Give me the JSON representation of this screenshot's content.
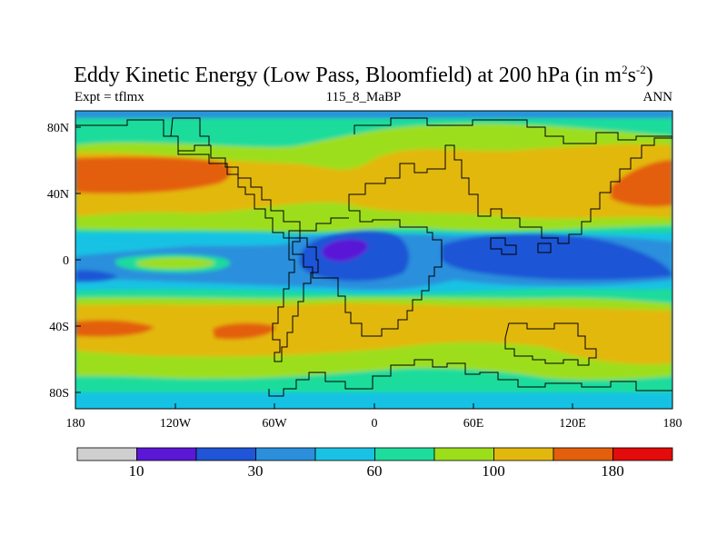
{
  "title": {
    "main": "Eddy Kinetic Energy (Low Pass, Bloomfield) at 200 hPa (in m",
    "sup1": "2",
    "mid": "s",
    "sup2": "-2",
    "end": ")"
  },
  "subtitle": {
    "left": "Expt = tflmx",
    "center": "115_8_MaBP",
    "right": "ANN"
  },
  "axes": {
    "x_ticks": [
      "180",
      "120W",
      "60W",
      "0",
      "60E",
      "120E",
      "180"
    ],
    "y_ticks": [
      "80N",
      "40N",
      "0",
      "40S",
      "80S"
    ]
  },
  "colorbar": {
    "colors": [
      "#cfcfcf",
      "#5a17d6",
      "#1f55d6",
      "#2b8fdc",
      "#19c2e3",
      "#1edc9b",
      "#9dde1b",
      "#e3b80e",
      "#e35f0b",
      "#e30b0b"
    ],
    "labels": [
      "10",
      "30",
      "60",
      "100",
      "180"
    ]
  },
  "colors": {
    "c_white": "#ffffff",
    "c_dark_purple": "#5a17d6",
    "c_blue": "#1f55d6",
    "c_mid_blue": "#2b8fdc",
    "c_cyan": "#19c2e3",
    "c_green": "#1edc9b",
    "c_lime": "#9dde1b",
    "c_yellow": "#e3b80e",
    "c_orange": "#e35f0b",
    "c_red": "#e30b0b",
    "c_land_outline": "#000000"
  }
}
